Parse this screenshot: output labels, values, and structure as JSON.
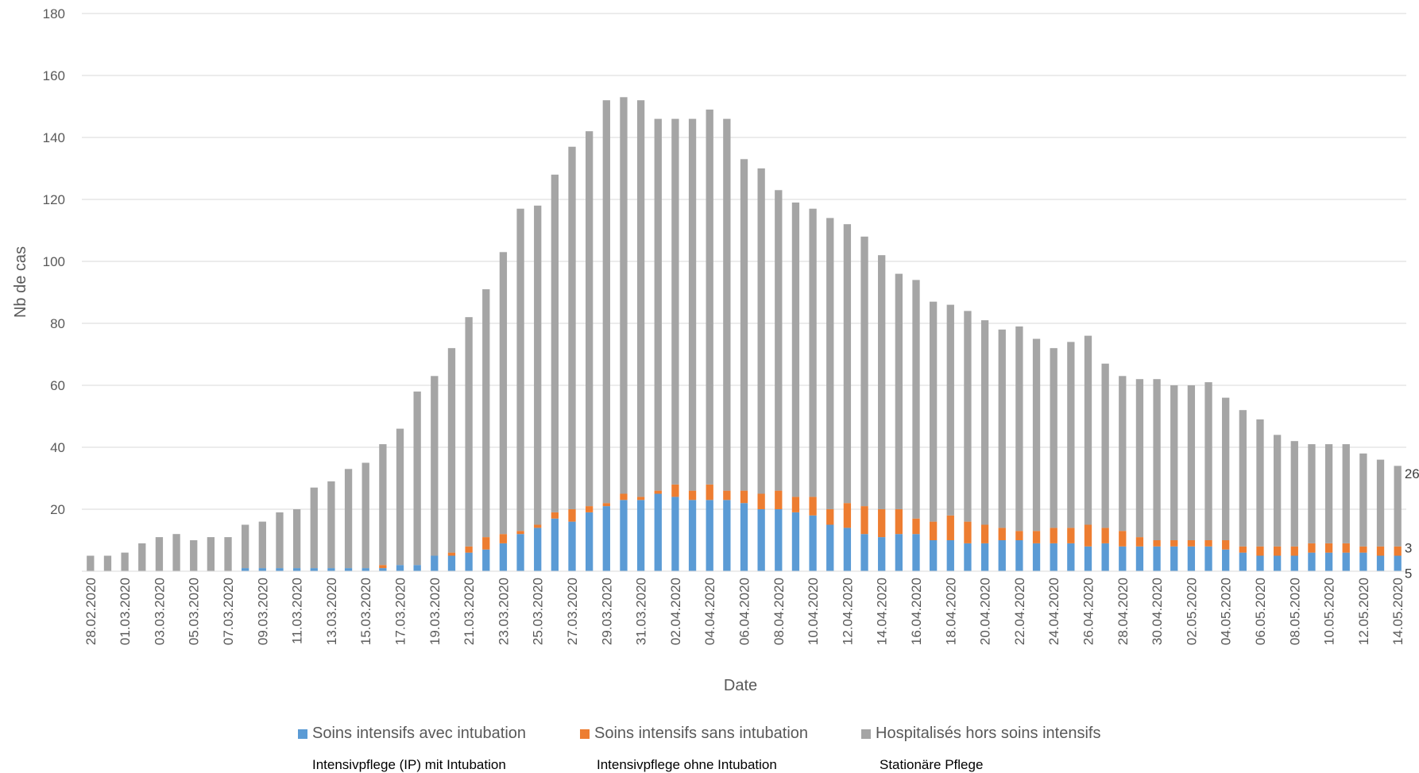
{
  "chart_data": {
    "type": "bar",
    "stacked": true,
    "xlabel": "Date",
    "ylabel": "Nb de cas",
    "ylim": [
      0,
      180
    ],
    "yticks": [
      20,
      40,
      60,
      80,
      100,
      120,
      140,
      160,
      180
    ],
    "grid": true,
    "legend_position": "bottom",
    "dates": [
      "28.02.2020",
      "29.02.2020",
      "01.03.2020",
      "02.03.2020",
      "03.03.2020",
      "04.03.2020",
      "05.03.2020",
      "06.03.2020",
      "07.03.2020",
      "08.03.2020",
      "09.03.2020",
      "10.03.2020",
      "11.03.2020",
      "12.03.2020",
      "13.03.2020",
      "14.03.2020",
      "15.03.2020",
      "16.03.2020",
      "17.03.2020",
      "18.03.2020",
      "19.03.2020",
      "20.03.2020",
      "21.03.2020",
      "22.03.2020",
      "23.03.2020",
      "24.03.2020",
      "25.03.2020",
      "26.03.2020",
      "27.03.2020",
      "28.03.2020",
      "29.03.2020",
      "30.03.2020",
      "31.03.2020",
      "01.04.2020",
      "02.04.2020",
      "03.04.2020",
      "04.04.2020",
      "05.04.2020",
      "06.04.2020",
      "07.04.2020",
      "08.04.2020",
      "09.04.2020",
      "10.04.2020",
      "11.04.2020",
      "12.04.2020",
      "13.04.2020",
      "14.04.2020",
      "15.04.2020",
      "16.04.2020",
      "17.04.2020",
      "18.04.2020",
      "19.04.2020",
      "20.04.2020",
      "21.04.2020",
      "22.04.2020",
      "23.04.2020",
      "24.04.2020",
      "25.04.2020",
      "26.04.2020",
      "27.04.2020",
      "28.04.2020",
      "29.04.2020",
      "30.04.2020",
      "01.05.2020",
      "02.05.2020",
      "03.05.2020",
      "04.05.2020",
      "05.05.2020",
      "06.05.2020",
      "07.05.2020",
      "08.05.2020",
      "09.05.2020",
      "10.05.2020",
      "11.05.2020",
      "12.05.2020",
      "13.05.2020",
      "14.05.2020"
    ],
    "series": [
      {
        "name": "Soins intensifs avec intubation",
        "color": "#5b9bd5",
        "values": [
          0,
          0,
          0,
          0,
          0,
          0,
          0,
          0,
          0,
          1,
          1,
          1,
          1,
          1,
          1,
          1,
          1,
          1,
          2,
          2,
          5,
          5,
          6,
          7,
          9,
          12,
          14,
          17,
          16,
          19,
          21,
          23,
          23,
          25,
          24,
          23,
          23,
          23,
          22,
          20,
          20,
          19,
          18,
          15,
          14,
          12,
          11,
          12,
          12,
          10,
          10,
          9,
          9,
          10,
          10,
          9,
          9,
          9,
          8,
          9,
          8,
          8,
          8,
          8,
          8,
          8,
          7,
          6,
          5,
          5,
          5,
          6,
          6,
          6,
          6,
          5,
          5
        ]
      },
      {
        "name": "Soins intensifs sans intubation",
        "color": "#ed7d31",
        "values": [
          0,
          0,
          0,
          0,
          0,
          0,
          0,
          0,
          0,
          0,
          0,
          0,
          0,
          0,
          0,
          0,
          0,
          1,
          0,
          0,
          0,
          1,
          2,
          4,
          3,
          1,
          1,
          2,
          4,
          2,
          1,
          2,
          1,
          1,
          4,
          3,
          5,
          3,
          4,
          5,
          6,
          5,
          6,
          5,
          8,
          9,
          9,
          8,
          5,
          6,
          8,
          7,
          6,
          4,
          3,
          4,
          5,
          5,
          7,
          5,
          5,
          3,
          2,
          2,
          2,
          2,
          3,
          2,
          3,
          3,
          3,
          3,
          3,
          3,
          2,
          3,
          3
        ]
      },
      {
        "name": "Hospitalisés hors soins intensifs",
        "color": "#a5a5a5",
        "values": [
          5,
          5,
          6,
          9,
          11,
          12,
          10,
          11,
          11,
          14,
          15,
          18,
          19,
          26,
          28,
          32,
          34,
          39,
          44,
          56,
          58,
          66,
          74,
          80,
          91,
          104,
          103,
          109,
          117,
          121,
          130,
          128,
          128,
          120,
          118,
          120,
          121,
          120,
          107,
          105,
          97,
          95,
          93,
          94,
          90,
          87,
          82,
          76,
          77,
          71,
          68,
          68,
          66,
          64,
          66,
          62,
          58,
          60,
          61,
          53,
          50,
          51,
          52,
          50,
          50,
          51,
          46,
          44,
          41,
          36,
          34,
          32,
          32,
          32,
          30,
          28,
          26
        ]
      }
    ],
    "end_labels": [
      "26",
      "3",
      "5"
    ]
  },
  "legend": {
    "items": [
      {
        "label": "Soins intensifs avec intubation",
        "sublabel": "Intensivpflege (IP) mit Intubation",
        "color": "#5b9bd5"
      },
      {
        "label": "Soins intensifs sans intubation",
        "sublabel": "Intensivpflege ohne Intubation",
        "color": "#ed7d31"
      },
      {
        "label": "Hospitalisés hors soins intensifs",
        "sublabel": "Stationäre Pflege",
        "color": "#a5a5a5"
      }
    ]
  }
}
